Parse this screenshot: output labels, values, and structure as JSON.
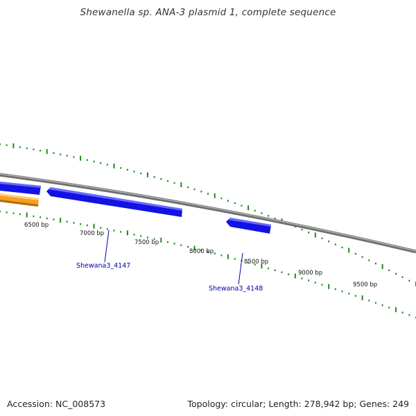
{
  "title": "Shewanella sp. ANA-3 plasmid 1, complete sequence",
  "footer": {
    "accession": "Accession: NC_008573",
    "summary": "Topology: circular; Length: 278,942 bp; Genes: 249"
  },
  "ticks": [
    {
      "label": "6500 bp"
    },
    {
      "label": "7000 bp"
    },
    {
      "label": "7500 bp"
    },
    {
      "label": "8000 bp"
    },
    {
      "label": "8500 bp"
    },
    {
      "label": "9000 bp"
    },
    {
      "label": "9500 bp"
    }
  ],
  "genes": [
    {
      "label": "Shewana3_4147"
    },
    {
      "label": "Shewana3_4148"
    }
  ],
  "colors": {
    "backbone": "#8c8c8c",
    "gene_forward": "#1010e0",
    "gene_reverse": "#f0a020",
    "tick": "#1a8a1a",
    "label_link": "#0000aa"
  }
}
